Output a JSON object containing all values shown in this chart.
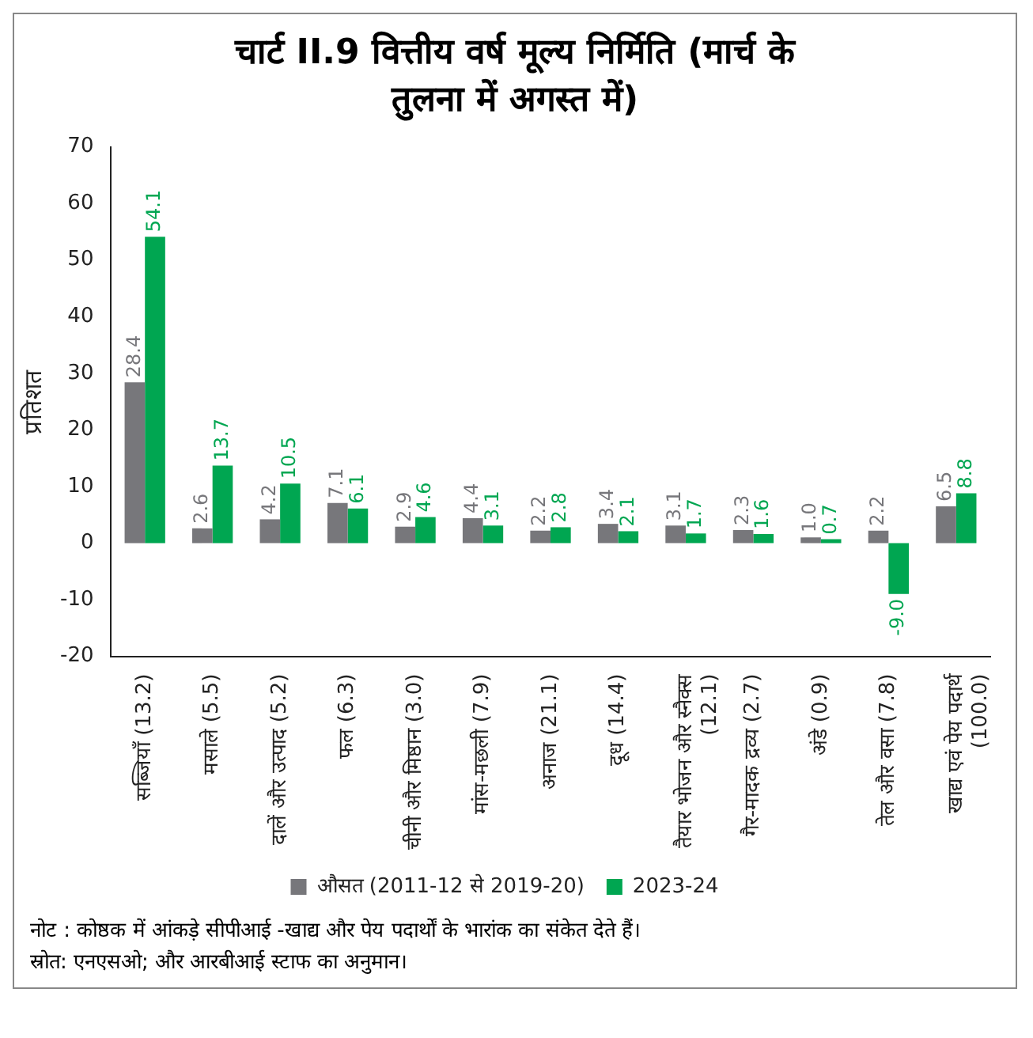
{
  "chart_data": {
    "type": "bar",
    "title": "चार्ट II.9 वित्तीय वर्ष मूल्य निर्मिति (मार्च के तुलना में अगस्त में)",
    "ylabel": "प्रतिशत",
    "categories": [
      "सब्जियाँ (13.2)",
      "मसाले (5.5)",
      "दालें और उत्पाद (5.2)",
      "फल (6.3)",
      "चीनी और मिष्ठान (3.0)",
      "मांस-मछली (7.9)",
      "अनाज (21.1)",
      "दूध (14.4)",
      "तैयार भोजन और स्नैक्स (12.1)",
      "गैर-मादक द्रव्य (2.7)",
      "अंडे (0.9)",
      "तेल और वसा (7.8)",
      "खाद्य एवं पेय पदार्थ (100.0)"
    ],
    "series": [
      {
        "name": "औसत (2011-12 से 2019-20)",
        "color": "#77777b",
        "values": [
          28.4,
          2.6,
          4.2,
          7.1,
          2.9,
          4.4,
          2.2,
          3.4,
          3.1,
          2.3,
          1.0,
          2.2,
          6.5
        ],
        "value_labels": [
          "28.4",
          "2.6",
          "4.2",
          "7.1",
          "2.9",
          "4.4",
          "2.2",
          "3.4",
          "3.1",
          "2.3",
          "1.0",
          "2.2",
          "6.5"
        ]
      },
      {
        "name": "2023-24",
        "color": "#00a651",
        "values": [
          54.1,
          13.7,
          10.5,
          6.1,
          4.6,
          3.1,
          2.8,
          2.1,
          1.7,
          1.6,
          0.7,
          -9.0,
          8.8
        ],
        "value_labels": [
          "54.1",
          "13.7",
          "10.5",
          "6.1",
          "4.6",
          "3.1",
          "2.8",
          "2.1",
          "1.7",
          "1.6",
          "0.7",
          "-9.0",
          "8.8"
        ]
      }
    ],
    "ylim": [
      -20,
      70
    ],
    "yticks": [
      -20,
      -10,
      0,
      10,
      20,
      30,
      40,
      50,
      60,
      70
    ],
    "grid": false,
    "legend": "bottom",
    "annotations": [
      "नोट :  कोष्ठक में आंकड़े सीपीआई -खाद्य और पेय पदार्थों के भारांक का संकेत देते हैं।",
      "स्रोत: एनएसओ; और आरबीआई स्टाफ का अनुमान।"
    ]
  }
}
